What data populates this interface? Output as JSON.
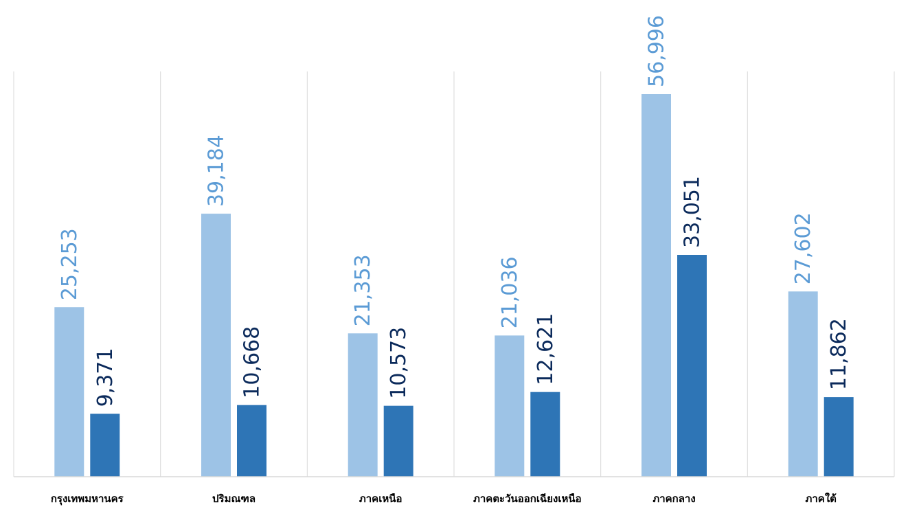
{
  "chart_data": {
    "type": "bar",
    "categories": [
      "กรุงเทพมหานคร",
      "ปริมณฑล",
      "ภาคเหนือ",
      "ภาคตะวันออกเฉียงเหนือ",
      "ภาคกลาง",
      "ภาคใต้"
    ],
    "series": [
      {
        "values": [
          25253,
          39184,
          21353,
          21036,
          56996,
          27602
        ],
        "color": "#9dc3e6",
        "label_color": "#5b9bd5"
      },
      {
        "values": [
          9371,
          10668,
          10573,
          12621,
          33051,
          11862
        ],
        "color": "#2e75b6",
        "label_color": "#0b2a5b"
      }
    ],
    "value_labels": [
      [
        "25,253",
        "39,184",
        "21,353",
        "21,036",
        "56,996",
        "27,602"
      ],
      [
        "9,371",
        "10,668",
        "10,573",
        "12,621",
        "33,051",
        "11,862"
      ]
    ],
    "ylim": [
      0,
      56996
    ],
    "grid": "vertical separators between categories",
    "legend": "none",
    "colors": {
      "axis": "#d9d9d9",
      "separator": "#d9d9d9"
    }
  }
}
